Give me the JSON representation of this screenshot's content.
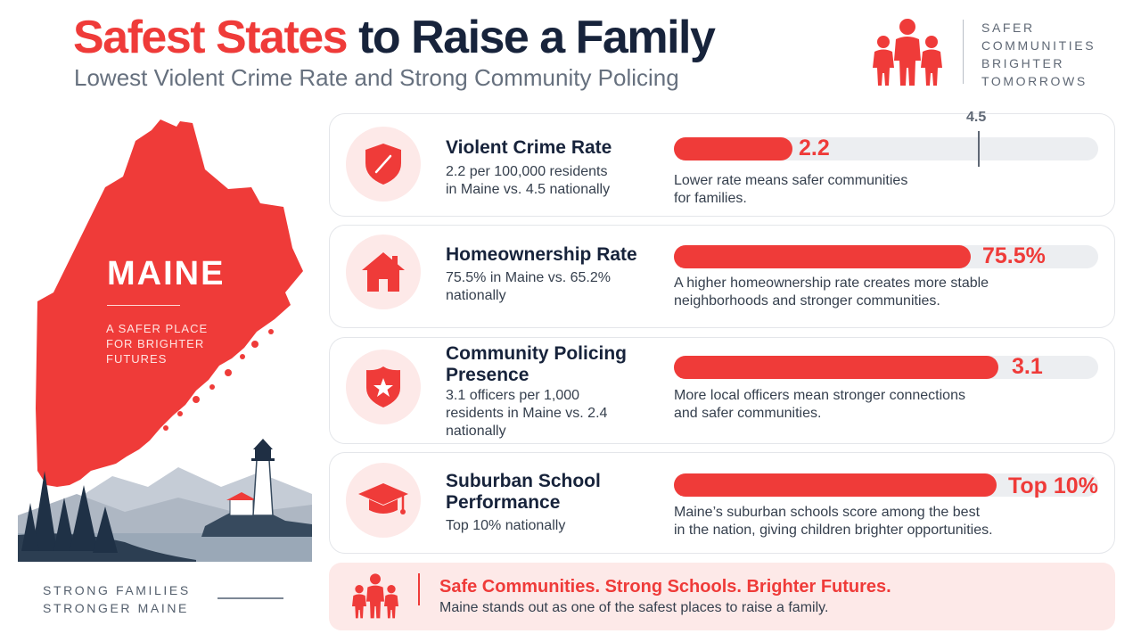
{
  "header": {
    "title_red": "Safest States",
    "title_rest": "to Raise a Family",
    "subtitle": "Lowest Violent Crime Rate and Strong Community Policing",
    "tagline": [
      "SAFER",
      "COMMUNITIES",
      "BRIGHTER",
      "TOMORROWS"
    ],
    "logo_icon": "family-icon"
  },
  "map_panel": {
    "state_name": "MAINE",
    "state_tagline": [
      "A SAFER PLACE",
      "FOR BRIGHTER",
      "FUTURES"
    ],
    "footer": [
      "STRONG FAMILIES",
      "STRONGER MAINE"
    ],
    "map_color": "#ef3b39"
  },
  "national_marker": {
    "label": "4.5",
    "value": 4.5
  },
  "metrics": [
    {
      "icon": "shield-icon",
      "title": "Violent Crime Rate",
      "description": [
        "2.2 per 100,000 residents",
        "in Maine vs. 4.5 nationally"
      ],
      "value_label": "2.2",
      "fill_fraction": 0.28,
      "note": [
        "Lower rate means safer communities",
        "for families."
      ]
    },
    {
      "icon": "house-icon",
      "title": "Homeownership Rate",
      "description": [
        "75.5% in Maine vs. 65.2%",
        "nationally"
      ],
      "value_label": "75.5%",
      "fill_fraction": 0.7,
      "note": [
        "A higher homeownership rate creates more stable",
        "neighborhoods and stronger communities."
      ]
    },
    {
      "icon": "police-badge-icon",
      "title": [
        "Community Policing",
        "Presence"
      ],
      "description": [
        "3.1 officers per 1,000",
        "residents in Maine vs. 2.4",
        "nationally"
      ],
      "value_label": "3.1",
      "fill_fraction": 0.765,
      "note": [
        "More local officers mean stronger connections",
        "and safer communities."
      ]
    },
    {
      "icon": "graduation-cap-icon",
      "title": [
        "Suburban School",
        "Performance"
      ],
      "description": [
        "Top 10% nationally"
      ],
      "value_label": "Top 10%",
      "fill_fraction": 0.76,
      "note": [
        "Maine’s suburban schools score among the best",
        "in the nation, giving children brighter opportunities."
      ]
    }
  ],
  "banner": {
    "icon": "family-icon",
    "title": "Safe Communities. Strong Schools. Brighter Futures.",
    "text": "Maine stands out as one of the safest places to raise a family."
  },
  "colors": {
    "accent": "#ef3b39",
    "navy": "#17233b",
    "pale": "#fde9e8"
  }
}
